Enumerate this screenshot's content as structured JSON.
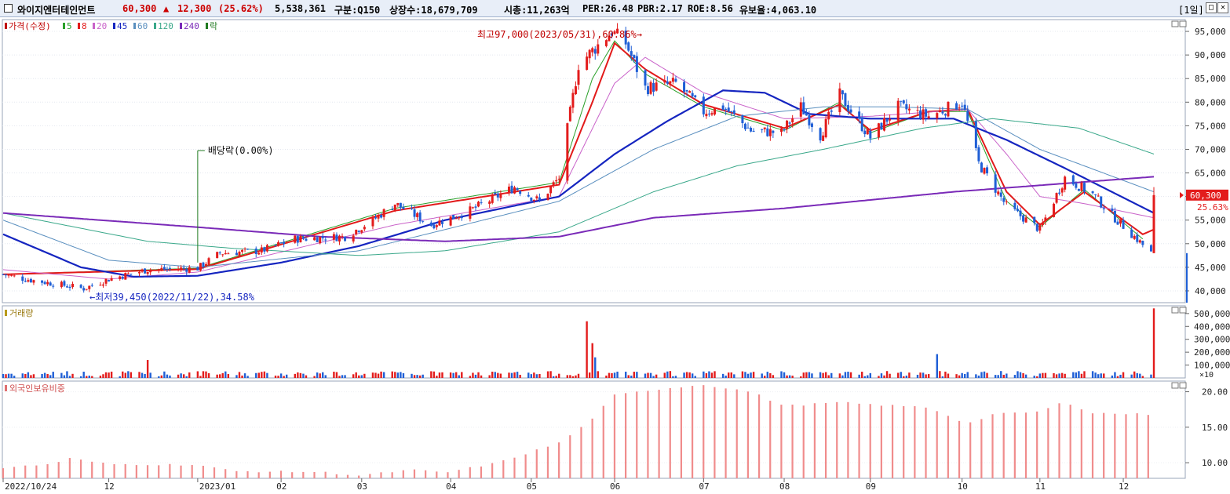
{
  "header": {
    "name": "와이지엔터테인먼트",
    "price": "60,300",
    "change_arrow": "▲",
    "change": "12,300",
    "change_pct": "(25.62%)",
    "volume": "5,538,361",
    "category": "구분:Q150",
    "shares": "상장수:18,679,709",
    "market_cap": "시총:11,263억",
    "per": "PER:26.48",
    "pbr": "PBR:2.17",
    "roe": "ROE:8.56",
    "retention": "유보율:4,063.10",
    "period": "[1일]",
    "window_buttons": [
      "□",
      "✕"
    ]
  },
  "colors": {
    "up": "#e31c1c",
    "down": "#1f5fd6",
    "accent": "#cc0000"
  },
  "chart_data": {
    "type": "candlestick",
    "price_panel": {
      "legend": [
        {
          "label": "가격(수정)",
          "color": "#c00000"
        },
        {
          "label": "5",
          "color": "#2aa02a"
        },
        {
          "label": "8",
          "color": "#e21a1a"
        },
        {
          "label": "20",
          "color": "#c962c9"
        },
        {
          "label": "45",
          "color": "#1525c0"
        },
        {
          "label": "60",
          "color": "#5a8fbf"
        },
        {
          "label": "120",
          "color": "#3aa88a"
        },
        {
          "label": "240",
          "color": "#7a2ab8"
        },
        {
          "label": "락",
          "color": "#207a20"
        }
      ],
      "y_ticks": [
        "95,000",
        "90,000",
        "85,000",
        "80,000",
        "75,000",
        "70,000",
        "65,000",
        "60,000",
        "55,000",
        "50,000",
        "45,000",
        "40,000"
      ],
      "ylim": [
        37500,
        97500
      ],
      "current_price_label": "60,300",
      "current_pct_label": "25.63%",
      "annotations": {
        "high": "최고97,000(2023/05/31),60.86%→",
        "low": "←최저39,450(2022/11/22),34.58%",
        "dividend": "배당락(0.00%)"
      },
      "price_path": [
        [
          "2022-10-24",
          43500
        ],
        [
          "2022-11-01",
          42500
        ],
        [
          "2022-11-22",
          40500
        ],
        [
          "2022-12-01",
          42500
        ],
        [
          "2022-12-15",
          44500
        ],
        [
          "2023-01-02",
          44800
        ],
        [
          "2023-01-10",
          48000
        ],
        [
          "2023-01-25",
          48500
        ],
        [
          "2023-02-06",
          51000
        ],
        [
          "2023-02-24",
          51500
        ],
        [
          "2023-03-06",
          55000
        ],
        [
          "2023-03-14",
          58500
        ],
        [
          "2023-03-27",
          54000
        ],
        [
          "2023-04-10",
          57000
        ],
        [
          "2023-04-26",
          62000
        ],
        [
          "2023-05-05",
          59000
        ],
        [
          "2023-05-12",
          64000
        ],
        [
          "2023-05-19",
          88000
        ],
        [
          "2023-05-31",
          95000
        ],
        [
          "2023-06-05",
          92500
        ],
        [
          "2023-06-12",
          83000
        ],
        [
          "2023-06-23",
          84000
        ],
        [
          "2023-07-03",
          78000
        ],
        [
          "2023-07-10",
          79000
        ],
        [
          "2023-07-20",
          74000
        ],
        [
          "2023-07-31",
          73500
        ],
        [
          "2023-08-07",
          79000
        ],
        [
          "2023-08-14",
          73000
        ],
        [
          "2023-08-21",
          81500
        ],
        [
          "2023-09-01",
          72500
        ],
        [
          "2023-09-11",
          79000
        ],
        [
          "2023-09-22",
          77000
        ],
        [
          "2023-10-04",
          80000
        ],
        [
          "2023-10-10",
          67000
        ],
        [
          "2023-10-20",
          58000
        ],
        [
          "2023-11-01",
          53000
        ],
        [
          "2023-11-10",
          64000
        ],
        [
          "2023-11-20",
          60500
        ],
        [
          "2023-11-27",
          56000
        ],
        [
          "2023-12-05",
          51500
        ],
        [
          "2023-12-11",
          48000
        ]
      ],
      "last_candle": {
        "date": "2023-12-12",
        "open": 48000,
        "high": 62000,
        "low": 48000,
        "close": 60300
      },
      "ma": {
        "5": [
          [
            "2022-10-24",
            43500
          ],
          [
            "2023-01-02",
            44800
          ],
          [
            "2023-03-14",
            57500
          ],
          [
            "2023-05-12",
            63000
          ],
          [
            "2023-05-24",
            85000
          ],
          [
            "2023-06-01",
            93000
          ],
          [
            "2023-06-12",
            86000
          ],
          [
            "2023-07-03",
            79000
          ],
          [
            "2023-08-01",
            74000
          ],
          [
            "2023-08-21",
            80000
          ],
          [
            "2023-09-01",
            73500
          ],
          [
            "2023-09-22",
            78000
          ],
          [
            "2023-10-06",
            78000
          ],
          [
            "2023-10-20",
            59000
          ],
          [
            "2023-11-01",
            53500
          ],
          [
            "2023-11-17",
            61500
          ],
          [
            "2023-12-08",
            51000
          ]
        ],
        "8": [
          [
            "2022-10-24",
            43500
          ],
          [
            "2023-01-02",
            44600
          ],
          [
            "2023-03-14",
            57000
          ],
          [
            "2023-05-12",
            62500
          ],
          [
            "2023-05-24",
            80000
          ],
          [
            "2023-06-01",
            92500
          ],
          [
            "2023-06-12",
            87000
          ],
          [
            "2023-07-03",
            79500
          ],
          [
            "2023-08-01",
            74500
          ],
          [
            "2023-08-21",
            79500
          ],
          [
            "2023-09-01",
            74000
          ],
          [
            "2023-09-22",
            78000
          ],
          [
            "2023-10-06",
            78500
          ],
          [
            "2023-10-20",
            61000
          ],
          [
            "2023-11-01",
            54000
          ],
          [
            "2023-11-17",
            61000
          ],
          [
            "2023-12-08",
            52000
          ],
          [
            "2023-12-12",
            53000
          ]
        ],
        "20": [
          [
            "2022-10-24",
            44500
          ],
          [
            "2022-12-01",
            42500
          ],
          [
            "2023-01-02",
            44000
          ],
          [
            "2023-03-14",
            54000
          ],
          [
            "2023-05-12",
            60000
          ],
          [
            "2023-06-01",
            84000
          ],
          [
            "2023-06-12",
            89500
          ],
          [
            "2023-07-03",
            82000
          ],
          [
            "2023-08-01",
            76500
          ],
          [
            "2023-09-01",
            77000
          ],
          [
            "2023-10-06",
            78500
          ],
          [
            "2023-10-20",
            69000
          ],
          [
            "2023-11-01",
            60000
          ],
          [
            "2023-11-17",
            58500
          ],
          [
            "2023-12-12",
            55500
          ]
        ],
        "45": [
          [
            "2022-10-24",
            52000
          ],
          [
            "2022-11-21",
            45000
          ],
          [
            "2022-12-10",
            43000
          ],
          [
            "2023-01-02",
            43200
          ],
          [
            "2023-02-01",
            46000
          ],
          [
            "2023-03-01",
            49500
          ],
          [
            "2023-04-01",
            55000
          ],
          [
            "2023-05-12",
            60000
          ],
          [
            "2023-06-01",
            69000
          ],
          [
            "2023-06-20",
            76000
          ],
          [
            "2023-07-10",
            82500
          ],
          [
            "2023-07-25",
            82000
          ],
          [
            "2023-08-10",
            77500
          ],
          [
            "2023-09-01",
            76500
          ],
          [
            "2023-10-01",
            76500
          ],
          [
            "2023-10-20",
            72000
          ],
          [
            "2023-11-10",
            66000
          ],
          [
            "2023-12-12",
            56500
          ]
        ],
        "60": [
          [
            "2022-10-24",
            55000
          ],
          [
            "2022-12-01",
            46500
          ],
          [
            "2023-01-02",
            45000
          ],
          [
            "2023-03-01",
            48500
          ],
          [
            "2023-04-01",
            53000
          ],
          [
            "2023-05-12",
            59000
          ],
          [
            "2023-06-15",
            70000
          ],
          [
            "2023-07-15",
            77000
          ],
          [
            "2023-08-15",
            79000
          ],
          [
            "2023-09-10",
            79000
          ],
          [
            "2023-10-06",
            78500
          ],
          [
            "2023-11-01",
            70000
          ],
          [
            "2023-12-12",
            61000
          ]
        ],
        "120": [
          [
            "2022-10-24",
            56500
          ],
          [
            "2022-12-15",
            50500
          ],
          [
            "2023-01-15",
            49000
          ],
          [
            "2023-03-01",
            47500
          ],
          [
            "2023-04-01",
            48500
          ],
          [
            "2023-05-12",
            52500
          ],
          [
            "2023-06-15",
            61000
          ],
          [
            "2023-07-15",
            66500
          ],
          [
            "2023-08-15",
            70000
          ],
          [
            "2023-09-20",
            74500
          ],
          [
            "2023-10-15",
            76500
          ],
          [
            "2023-11-15",
            74500
          ],
          [
            "2023-12-12",
            69000
          ]
        ],
        "240": [
          [
            "2022-10-24",
            56500
          ],
          [
            "2023-01-02",
            53500
          ],
          [
            "2023-02-15",
            51500
          ],
          [
            "2023-04-01",
            50500
          ],
          [
            "2023-05-12",
            51500
          ],
          [
            "2023-06-15",
            55500
          ],
          [
            "2023-08-01",
            57500
          ],
          [
            "2023-10-01",
            61000
          ],
          [
            "2023-11-15",
            63000
          ],
          [
            "2023-12-12",
            64200
          ]
        ]
      }
    },
    "volume_panel": {
      "title": "거래량",
      "y_ticks": [
        "500,000",
        "400,000",
        "300,000",
        "200,000",
        "100,000"
      ],
      "unit": "×10",
      "ylim": [
        0,
        560000
      ],
      "spikes": [
        {
          "date": "2022-12-15",
          "value": 140000
        },
        {
          "date": "2023-05-22",
          "value": 440000
        },
        {
          "date": "2023-05-24",
          "value": 270000
        },
        {
          "date": "2023-05-25",
          "value": 160000
        },
        {
          "date": "2023-09-25",
          "value": 185000
        },
        {
          "date": "2023-12-12",
          "value": 540000
        }
      ],
      "base": 30000
    },
    "foreign_panel": {
      "title": "외국인보유비중",
      "y_ticks": [
        "20.00",
        "15.00",
        "10.00"
      ],
      "ylim": [
        7.8,
        21.5
      ],
      "path": [
        [
          "2022-10-24",
          9.3
        ],
        [
          "2022-11-10",
          9.8
        ],
        [
          "2022-11-17",
          10.6
        ],
        [
          "2022-12-01",
          9.8
        ],
        [
          "2023-01-02",
          9.7
        ],
        [
          "2023-01-15",
          8.8
        ],
        [
          "2023-02-15",
          8.7
        ],
        [
          "2023-03-01",
          8.2
        ],
        [
          "2023-03-20",
          9.0
        ],
        [
          "2023-04-01",
          8.6
        ],
        [
          "2023-04-20",
          10.0
        ],
        [
          "2023-05-12",
          12.8
        ],
        [
          "2023-05-22",
          15.5
        ],
        [
          "2023-06-01",
          19.5
        ],
        [
          "2023-06-15",
          20.3
        ],
        [
          "2023-07-03",
          21.0
        ],
        [
          "2023-07-20",
          20.0
        ],
        [
          "2023-08-01",
          18.0
        ],
        [
          "2023-08-21",
          18.5
        ],
        [
          "2023-09-01",
          18.2
        ],
        [
          "2023-09-22",
          17.8
        ],
        [
          "2023-10-06",
          15.5
        ],
        [
          "2023-10-15",
          16.8
        ],
        [
          "2023-11-01",
          17.2
        ],
        [
          "2023-11-10",
          18.6
        ],
        [
          "2023-11-20",
          17.0
        ],
        [
          "2023-12-12",
          16.8
        ]
      ]
    },
    "x_ticks": [
      {
        "date": "2022-10-24",
        "label": "2022/10/24"
      },
      {
        "date": "2022-12-01",
        "label": "12"
      },
      {
        "date": "2023-01-02",
        "label": "2023/01"
      },
      {
        "date": "2023-02-01",
        "label": "02"
      },
      {
        "date": "2023-03-02",
        "label": "03"
      },
      {
        "date": "2023-04-03",
        "label": "04"
      },
      {
        "date": "2023-05-02",
        "label": "05"
      },
      {
        "date": "2023-06-01",
        "label": "06"
      },
      {
        "date": "2023-07-03",
        "label": "07"
      },
      {
        "date": "2023-08-01",
        "label": "08"
      },
      {
        "date": "2023-09-01",
        "label": "09"
      },
      {
        "date": "2023-10-04",
        "label": "10"
      },
      {
        "date": "2023-11-01",
        "label": "11"
      },
      {
        "date": "2023-12-01",
        "label": "12"
      }
    ]
  }
}
